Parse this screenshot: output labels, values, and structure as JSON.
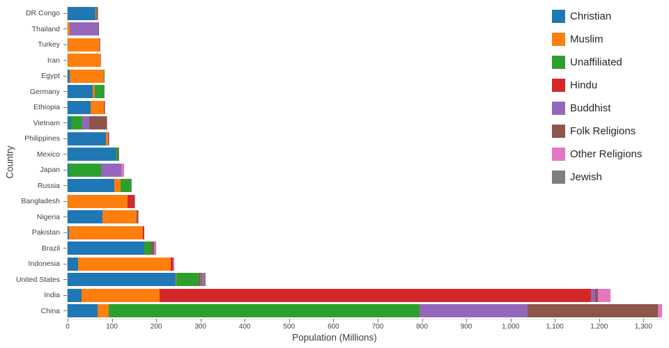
{
  "chart_data": {
    "type": "bar",
    "orientation": "horizontal",
    "stacked": true,
    "title": "",
    "xlabel": "Population (Millions)",
    "ylabel": "Country",
    "xlim": [
      0,
      1345
    ],
    "grid": false,
    "legend_position": "top-right",
    "categories": [
      "DR Congo",
      "Thailand",
      "Turkey",
      "Iran",
      "Egypt",
      "Germany",
      "Ethiopia",
      "Vietnam",
      "Philippines",
      "Mexico",
      "Japan",
      "Russia",
      "Bangladesh",
      "Nigeria",
      "Pakistan",
      "Brazil",
      "Indonesia",
      "United States",
      "India",
      "China"
    ],
    "xtick_values": [
      0,
      100,
      200,
      300,
      400,
      500,
      600,
      700,
      800,
      900,
      1000,
      1100,
      1200,
      1300
    ],
    "xtick_labels": [
      "0",
      "100",
      "200",
      "300",
      "400",
      "500",
      "600",
      "700",
      "800",
      "900",
      "1,000",
      "1,100",
      "1,200",
      "1,300"
    ],
    "series": [
      {
        "name": "Christian",
        "color": "#1f77b4",
        "values": [
          63.2,
          0.6,
          0.3,
          0.1,
          4.3,
          56.5,
          52.6,
          7.2,
          86.4,
          107.8,
          2.9,
          105.2,
          0.7,
          78.1,
          2.8,
          173.3,
          23.7,
          243.1,
          31.1,
          68.4
        ]
      },
      {
        "name": "Muslim",
        "color": "#ff7f0e",
        "values": [
          1.0,
          3.9,
          71.3,
          73.6,
          77.0,
          4.8,
          28.7,
          0.2,
          5.0,
          0.1,
          0.2,
          14.3,
          134.4,
          77.3,
          167.4,
          0.2,
          209.1,
          2.8,
          176.2,
          24.7
        ]
      },
      {
        "name": "Unaffiliated",
        "color": "#2ca02c",
        "values": [
          1.2,
          0.3,
          0.9,
          0.2,
          0.1,
          20.4,
          0.5,
          26.2,
          0.1,
          5.7,
          72.1,
          23.2,
          0.4,
          0.7,
          0.1,
          15.4,
          0.2,
          50.8,
          0.9,
          700.7
        ]
      },
      {
        "name": "Hindu",
        "color": "#d62728",
        "values": [
          0,
          0.1,
          0,
          0,
          0,
          0.1,
          0,
          0.1,
          0,
          0,
          0,
          0,
          13.5,
          0,
          3.3,
          0,
          4.1,
          1.8,
          973.8,
          0.1
        ]
      },
      {
        "name": "Buddhist",
        "color": "#9467bd",
        "values": [
          0,
          64.4,
          0.1,
          0,
          0,
          0.3,
          0,
          14.4,
          0,
          0,
          45.8,
          0.2,
          0.5,
          0,
          0,
          0.5,
          1.7,
          3.6,
          9.3,
          244.1
        ]
      },
      {
        "name": "Folk Religions",
        "color": "#8c564b",
        "values": [
          1.8,
          0.1,
          0,
          0,
          0,
          0.1,
          2.3,
          39.8,
          1.5,
          1.1,
          0.4,
          0.2,
          0.8,
          2.7,
          0,
          5.4,
          0.7,
          1.9,
          5.8,
          294.3
        ]
      },
      {
        "name": "Other Religions",
        "color": "#e377c2",
        "values": [
          1.5,
          0,
          0,
          0.1,
          0,
          0.1,
          0.6,
          0.3,
          0.1,
          0.1,
          6.1,
          0.2,
          0.1,
          0.1,
          0,
          3.0,
          0.4,
          1.9,
          27.6,
          9.1
        ]
      },
      {
        "name": "Jewish",
        "color": "#7f7f7f",
        "values": [
          0,
          0,
          0,
          0,
          0,
          0.2,
          0,
          0,
          0,
          0.1,
          0,
          0.2,
          0,
          0,
          0,
          0.1,
          0,
          5.7,
          0,
          0
        ]
      }
    ]
  }
}
